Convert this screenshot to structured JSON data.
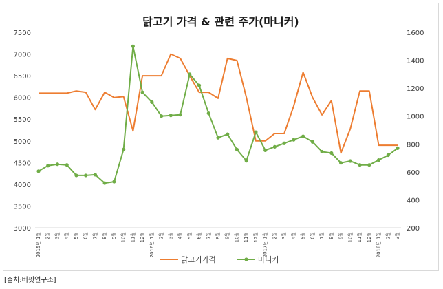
{
  "chart_data": {
    "type": "line",
    "title": "닭고기 가격 & 관련 주가(마니커)",
    "x_labels": [
      "2015년 1월",
      "2월",
      "3월",
      "4월",
      "5월",
      "6월",
      "7월",
      "8월",
      "9월",
      "10월",
      "11월",
      "12월",
      "2016년 1월",
      "2월",
      "3월",
      "4월",
      "5월",
      "6월",
      "7월",
      "8월",
      "9월",
      "10월",
      "11월",
      "12월",
      "2017년 1월",
      "2월",
      "3월",
      "4월",
      "5월",
      "6월",
      "7월",
      "8월",
      "9월",
      "10월",
      "11월",
      "12월",
      "2018년 1월",
      "2월",
      "3월"
    ],
    "y_left": {
      "min": 3000,
      "max": 7500,
      "step": 500,
      "ticks": [
        "3000",
        "3500",
        "4000",
        "4500",
        "5000",
        "5500",
        "6000",
        "6500",
        "7000",
        "7500"
      ]
    },
    "y_right": {
      "min": 200,
      "max": 1600,
      "step": 200,
      "ticks": [
        "200",
        "400",
        "600",
        "800",
        "1000",
        "1200",
        "1400",
        "1600"
      ]
    },
    "series": [
      {
        "name": "닭고기가격",
        "axis": "left",
        "color": "#ed7d31",
        "marker": false,
        "values": [
          6100,
          6100,
          6100,
          6100,
          6150,
          6120,
          5720,
          6120,
          6000,
          6020,
          5230,
          6500,
          6500,
          6500,
          7000,
          6900,
          6500,
          6120,
          6120,
          5980,
          6900,
          6850,
          6000,
          5000,
          5000,
          5170,
          5170,
          5800,
          6580,
          6000,
          5600,
          5930,
          4720,
          5280,
          6150,
          6150,
          4900,
          4900,
          4900
        ]
      },
      {
        "name": "마니커",
        "axis": "right",
        "color": "#70ad47",
        "marker": true,
        "values": [
          605,
          645,
          655,
          650,
          575,
          575,
          580,
          520,
          530,
          760,
          1500,
          1170,
          1100,
          1000,
          1005,
          1010,
          1300,
          1220,
          1020,
          845,
          870,
          760,
          680,
          885,
          755,
          780,
          805,
          830,
          855,
          815,
          745,
          735,
          665,
          678,
          650,
          650,
          685,
          720,
          770
        ]
      }
    ],
    "legend_position": "bottom",
    "grid": false
  },
  "source": "[출처:버핏연구소]"
}
